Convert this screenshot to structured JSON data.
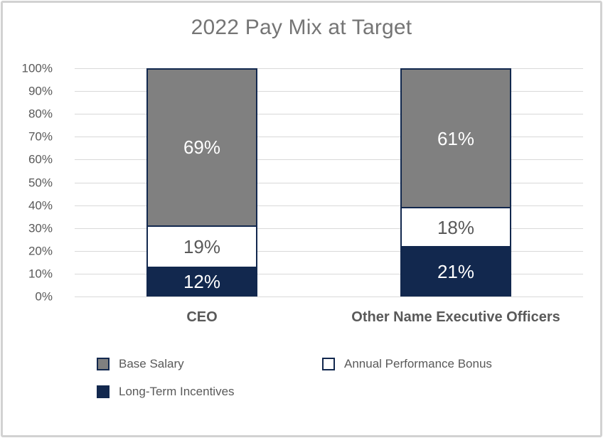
{
  "chart_data": {
    "type": "bar",
    "stacked": true,
    "title": "2022 Pay Mix at Target",
    "categories": [
      "CEO",
      "Other Name Executive Officers"
    ],
    "series": [
      {
        "name": "Base Salary",
        "values": [
          69,
          61
        ]
      },
      {
        "name": "Annual Performance Bonus",
        "values": [
          19,
          18
        ]
      },
      {
        "name": "Long-Term Incentives",
        "values": [
          12,
          21
        ]
      }
    ],
    "data_labels": {
      "CEO": [
        "69%",
        "19%",
        "12%"
      ],
      "Other Name Executive Officers": [
        "61%",
        "18%",
        "21%"
      ]
    },
    "xlabel": "",
    "ylabel": "",
    "ylim": [
      0,
      100
    ],
    "y_ticks": [
      "100%",
      "90%",
      "80%",
      "70%",
      "60%",
      "50%",
      "40%",
      "30%",
      "20%",
      "10%",
      "0%"
    ],
    "grid": true,
    "legend_position": "bottom",
    "value_suffix": "%"
  },
  "colors": {
    "navy": "#12284E",
    "bar_gray": "#808080",
    "white": "#FFFFFF",
    "gridline": "#D9D9D9",
    "title_text": "#757575",
    "label_text": "#595959",
    "frame_border": "#D2D2D2"
  }
}
